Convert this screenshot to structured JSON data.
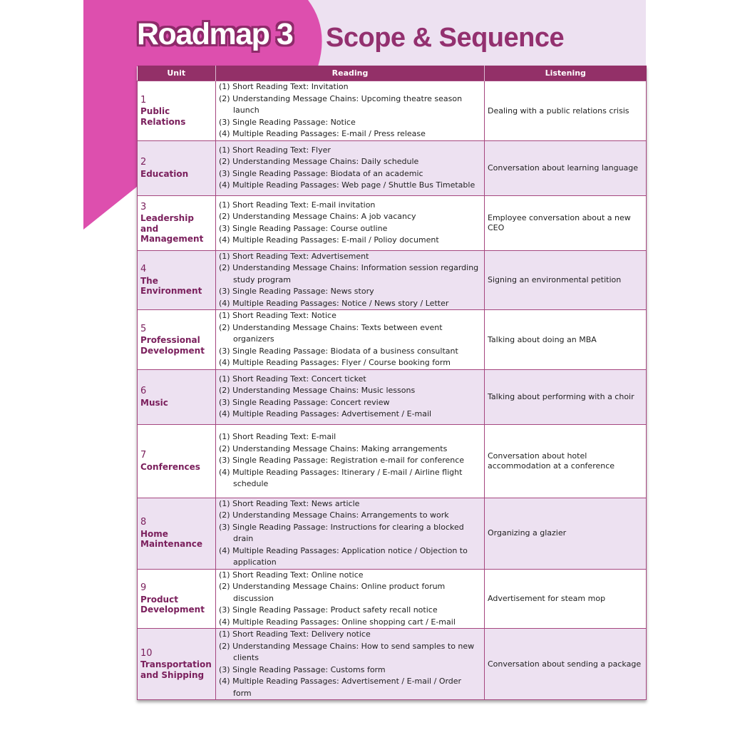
{
  "header": {
    "brand": "Roadmap 3",
    "title": "Scope & Sequence"
  },
  "colors": {
    "accent": "#933068",
    "pink": "#dd4fae",
    "row_alt": "#ede1f1",
    "unit_text": "#7a1f5c"
  },
  "table": {
    "columns": [
      "Unit",
      "Reading",
      "Listening"
    ],
    "rows": [
      {
        "num": "1",
        "name": "Public Relations",
        "reading": [
          "(1) Short Reading Text: Invitation",
          "(2) Understanding Message Chains: Upcoming theatre season launch",
          "(3) Single Reading Passage: Notice",
          "(4) Multiple Reading Passages: E-mail / Press release"
        ],
        "listening": "Dealing with a public relations crisis"
      },
      {
        "num": "2",
        "name": "Education",
        "reading": [
          "(1) Short Reading Text: Flyer",
          "(2) Understanding Message Chains: Daily schedule",
          "(3) Single Reading Passage: Biodata of an academic",
          "(4) Multiple Reading Passages: Web page / Shuttle Bus Timetable"
        ],
        "listening": "Conversation about learning language"
      },
      {
        "num": "3",
        "name": "Leadership and Management",
        "reading": [
          "(1) Short Reading Text: E-mail invitation",
          "(2) Understanding Message Chains: A job vacancy",
          "(3) Single Reading Passage: Course outline",
          "(4) Multiple Reading Passages: E-mail / Polioy document"
        ],
        "listening": "Employee conversation about a new CEO"
      },
      {
        "num": "4",
        "name": "The Environment",
        "reading": [
          "(1) Short Reading Text: Advertisement",
          "(2) Understanding Message Chains: Information session regarding study program",
          "(3) Single Reading Passage: News story",
          "(4) Multiple Reading Passages: Notice / News story / Letter"
        ],
        "listening": "Signing an environmental petition"
      },
      {
        "num": "5",
        "name": "Professional Development",
        "reading": [
          "(1) Short Reading Text: Notice",
          "(2) Understanding Message Chains: Texts between event organizers",
          "(3) Single Reading Passage: Biodata of a business consultant",
          "(4) Multiple Reading Passages: Flyer / Course booking form"
        ],
        "listening": "Talking about doing an MBA"
      },
      {
        "num": "6",
        "name": "Music",
        "reading": [
          "(1) Short Reading Text: Concert ticket",
          "(2) Understanding Message Chains: Music lessons",
          "(3) Single Reading Passage: Concert review",
          "(4) Multiple Reading Passages: Advertisement / E-mail"
        ],
        "listening": "Talking about performing with a choir"
      },
      {
        "num": "7",
        "name": "Conferences",
        "reading": [
          "(1) Short Reading Text: E-mail",
          "(2) Understanding Message Chains: Making arrangements",
          "(3) Single Reading Passage: Registration e-mail for conference",
          "(4) Multiple Reading Passages: Itinerary / E-mail / Airline flight schedule"
        ],
        "listening": "Conversation about hotel accommodation at a conference"
      },
      {
        "num": "8",
        "name": "Home Maintenance",
        "reading": [
          "(1) Short Reading Text: News article",
          "(2) Understanding Message Chains: Arrangements to work",
          "(3) Single Reading Passage: Instructions for clearing a blocked drain",
          "(4) Multiple Reading Passages: Application notice / Objection to application"
        ],
        "listening": "Organizing a glazier"
      },
      {
        "num": "9",
        "name": "Product Development",
        "reading": [
          "(1) Short Reading Text: Online notice",
          "(2) Understanding Message Chains: Online product forum discussion",
          "(3) Single Reading Passage: Product safety recall notice",
          "(4) Multiple Reading Passages: Online shopping cart / E-mail"
        ],
        "listening": "Advertisement for steam mop"
      },
      {
        "num": "10",
        "name": "Transportation and Shipping",
        "reading": [
          "(1) Short Reading Text: Delivery notice",
          "(2) Understanding Message Chains: How to send samples to new clients",
          "(3) Single Reading Passage: Customs form",
          "(4) Multiple Reading Passages: Advertisement / E-mail / Order form"
        ],
        "listening": "Conversation about sending a package"
      }
    ]
  }
}
